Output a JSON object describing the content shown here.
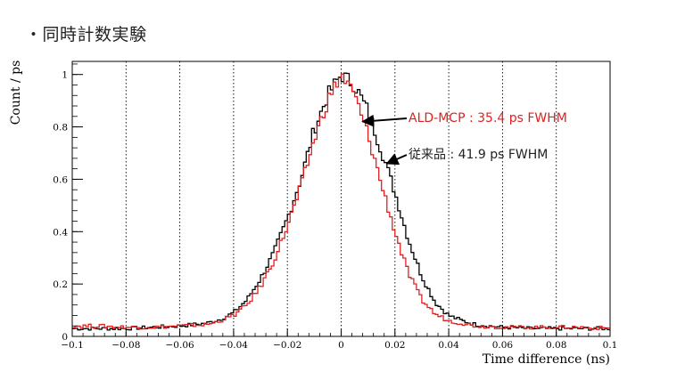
{
  "heading": "・同時計数実験",
  "chart_data": {
    "type": "line",
    "step": true,
    "xlabel": "Time difference (ns)",
    "ylabel": "Count / ps",
    "xlim": [
      -0.1,
      0.1
    ],
    "ylim": [
      0,
      1.05
    ],
    "x_ticks": [
      -0.1,
      -0.08,
      -0.06,
      -0.04,
      -0.02,
      0,
      0.02,
      0.04,
      0.06,
      0.08,
      0.1
    ],
    "x_tick_labels": [
      "−0.1",
      "−0.08",
      "−0.06",
      "−0.04",
      "−0.02",
      "0",
      "0.02",
      "0.04",
      "0.06",
      "0.08",
      "0.1"
    ],
    "y_ticks": [
      0,
      0.2,
      0.4,
      0.6,
      0.8,
      1
    ],
    "y_tick_labels": [
      "0",
      "0.2",
      "0.4",
      "0.6",
      "0.8",
      "1"
    ],
    "grid": "vertical-dotted",
    "series": [
      {
        "color": "#000000",
        "x": [
          -0.1,
          -0.09,
          -0.08,
          -0.07,
          -0.06,
          -0.05,
          -0.045,
          -0.04,
          -0.035,
          -0.03,
          -0.025,
          -0.02,
          -0.015,
          -0.01,
          -0.005,
          0,
          0.005,
          0.01,
          0.015,
          0.02,
          0.025,
          0.03,
          0.035,
          0.04,
          0.045,
          0.05,
          0.06,
          0.07,
          0.08,
          0.09,
          0.1
        ],
        "y": [
          0.03,
          0.03,
          0.03,
          0.035,
          0.04,
          0.05,
          0.065,
          0.09,
          0.14,
          0.22,
          0.32,
          0.45,
          0.6,
          0.79,
          0.92,
          1.0,
          0.96,
          0.86,
          0.71,
          0.55,
          0.37,
          0.23,
          0.13,
          0.08,
          0.06,
          0.045,
          0.035,
          0.03,
          0.03,
          0.03,
          0.03
        ]
      },
      {
        "color": "#e02020",
        "x": [
          -0.1,
          -0.09,
          -0.08,
          -0.07,
          -0.06,
          -0.05,
          -0.045,
          -0.04,
          -0.035,
          -0.03,
          -0.025,
          -0.02,
          -0.015,
          -0.01,
          -0.005,
          0,
          0.005,
          0.01,
          0.015,
          0.02,
          0.025,
          0.03,
          0.035,
          0.04,
          0.045,
          0.05,
          0.06,
          0.07,
          0.08,
          0.09,
          0.1
        ],
        "y": [
          0.04,
          0.04,
          0.035,
          0.035,
          0.04,
          0.045,
          0.06,
          0.08,
          0.12,
          0.19,
          0.29,
          0.42,
          0.57,
          0.75,
          0.9,
          1.0,
          0.92,
          0.77,
          0.58,
          0.4,
          0.24,
          0.14,
          0.085,
          0.06,
          0.05,
          0.04,
          0.035,
          0.035,
          0.035,
          0.035,
          0.03
        ]
      }
    ],
    "annotations": [
      {
        "text": "ALD-MCP : 35.4 ps FWHM",
        "color": "#e02020",
        "arrow_to": [
          0.008,
          0.82
        ]
      },
      {
        "text": "従来品 : 41.9 ps FWHM",
        "color": "#222222",
        "arrow_to": [
          0.017,
          0.66
        ]
      }
    ]
  }
}
